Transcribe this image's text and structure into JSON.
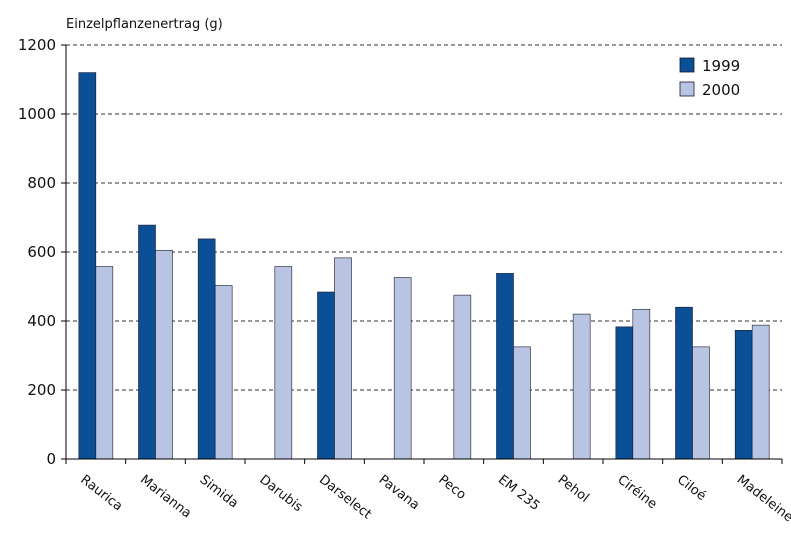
{
  "chart_data": {
    "type": "bar",
    "title": "",
    "ylabel": "Einzelpflanzenertrag (g)",
    "xlabel": "",
    "ylim": [
      0,
      1200
    ],
    "yticks": [
      "0",
      "200",
      "400",
      "600",
      "800",
      "1000",
      "1200"
    ],
    "grid": "horizontal-dashed",
    "legend_position": "top-right",
    "categories": [
      "Raurica",
      "Marianna",
      "Simida",
      "Darubis",
      "Darselect",
      "Pavana",
      "Peco",
      "EM 235",
      "Pehol",
      "Ciréine",
      "Ciloé",
      "Madeleine"
    ],
    "series": [
      {
        "name": "1999",
        "color": "#0b4f96",
        "values": [
          1120,
          678,
          638,
          null,
          484,
          null,
          null,
          538,
          null,
          383,
          440,
          373
        ]
      },
      {
        "name": "2000",
        "color": "#b8c4e2",
        "values": [
          558,
          605,
          503,
          558,
          583,
          526,
          475,
          325,
          420,
          434,
          325,
          388
        ]
      }
    ]
  }
}
